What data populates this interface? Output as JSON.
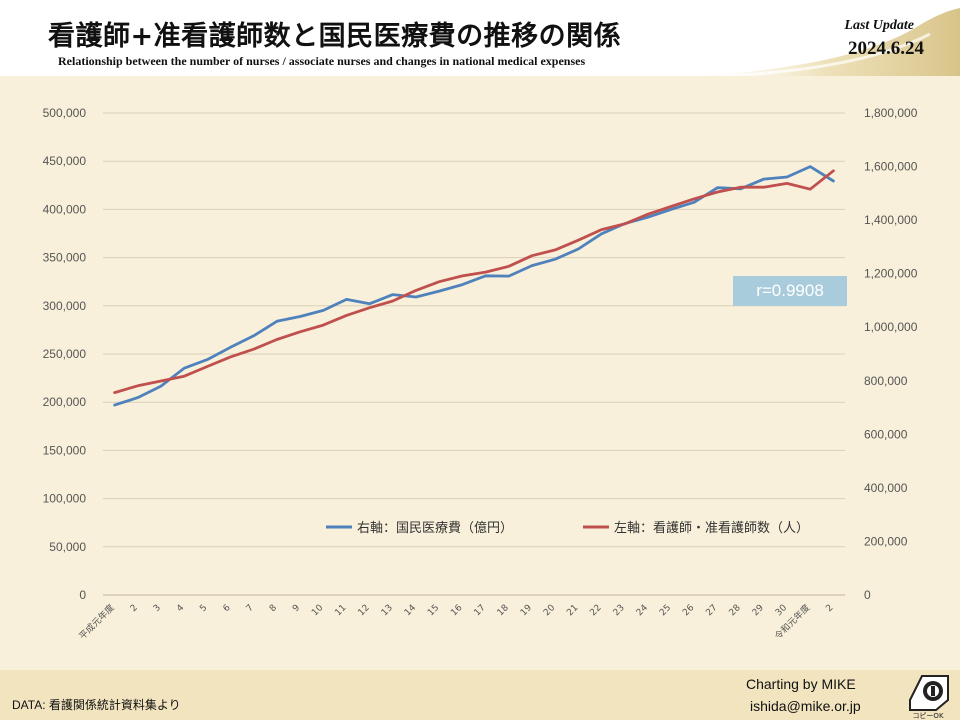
{
  "header": {
    "title": "看護師+准看護師数と国民医療費の推移の関係",
    "subtitle": "Relationship between the number of nurses / associate nurses and changes in national medical expenses",
    "last_update_label": "Last Update",
    "last_update_date": "2024.6.24"
  },
  "footer": {
    "data_source": "DATA: 看護関係統計資料集より",
    "credit_line1": "Charting by MIKE",
    "credit_line2": "ishida@mike.or.jp",
    "logo_text": "コピーOK"
  },
  "annotation": {
    "correlation": "r=0.9908"
  },
  "colors": {
    "nurses": "#c0504d",
    "medical": "#4f81bd",
    "grid": "#d9d0b8",
    "badge": "#a9ccdc"
  },
  "chart_data": {
    "type": "line",
    "categories": [
      "平成元年度",
      "2",
      "3",
      "4",
      "5",
      "6",
      "7",
      "8",
      "9",
      "10",
      "11",
      "12",
      "13",
      "14",
      "15",
      "16",
      "17",
      "18",
      "19",
      "20",
      "21",
      "22",
      "23",
      "24",
      "25",
      "26",
      "27",
      "28",
      "29",
      "30",
      "令和元年度",
      "2"
    ],
    "y_left": {
      "min": 0,
      "max": 500000,
      "step": 50000,
      "ticks": [
        "0",
        "50,000",
        "100,000",
        "150,000",
        "200,000",
        "250,000",
        "300,000",
        "350,000",
        "400,000",
        "450,000",
        "500,000"
      ]
    },
    "y_right": {
      "min": 0,
      "max": 1800000,
      "step": 200000,
      "ticks": [
        "0",
        "200,000",
        "400,000",
        "600,000",
        "800,000",
        "1,000,000",
        "1,200,000",
        "1,400,000",
        "1,600,000",
        "1,800,000"
      ]
    },
    "grid": true,
    "legend_position": "bottom-right",
    "series": [
      {
        "name": "右軸：国民医療費（億円）",
        "axis": "right",
        "color": "#4f81bd",
        "values": [
          709000,
          737000,
          780000,
          847000,
          879000,
          925000,
          968000,
          1022000,
          1040000,
          1063000,
          1104000,
          1088000,
          1122000,
          1113000,
          1135000,
          1159000,
          1192000,
          1191000,
          1230000,
          1254000,
          1292000,
          1349000,
          1387000,
          1411000,
          1440000,
          1467000,
          1521000,
          1517000,
          1553000,
          1561000,
          1600000,
          1546000
        ]
      },
      {
        "name": "左軸：看護師・准看護師数（人）",
        "axis": "left",
        "color": "#c0504d",
        "values": [
          210000,
          217000,
          222000,
          227000,
          237000,
          247000,
          255000,
          265000,
          273000,
          280000,
          290000,
          298000,
          305000,
          316000,
          325000,
          331000,
          335000,
          341000,
          352000,
          358000,
          368000,
          379000,
          385000,
          395000,
          403000,
          411000,
          418000,
          423000,
          423000,
          427000,
          421000,
          440000
        ]
      }
    ]
  }
}
